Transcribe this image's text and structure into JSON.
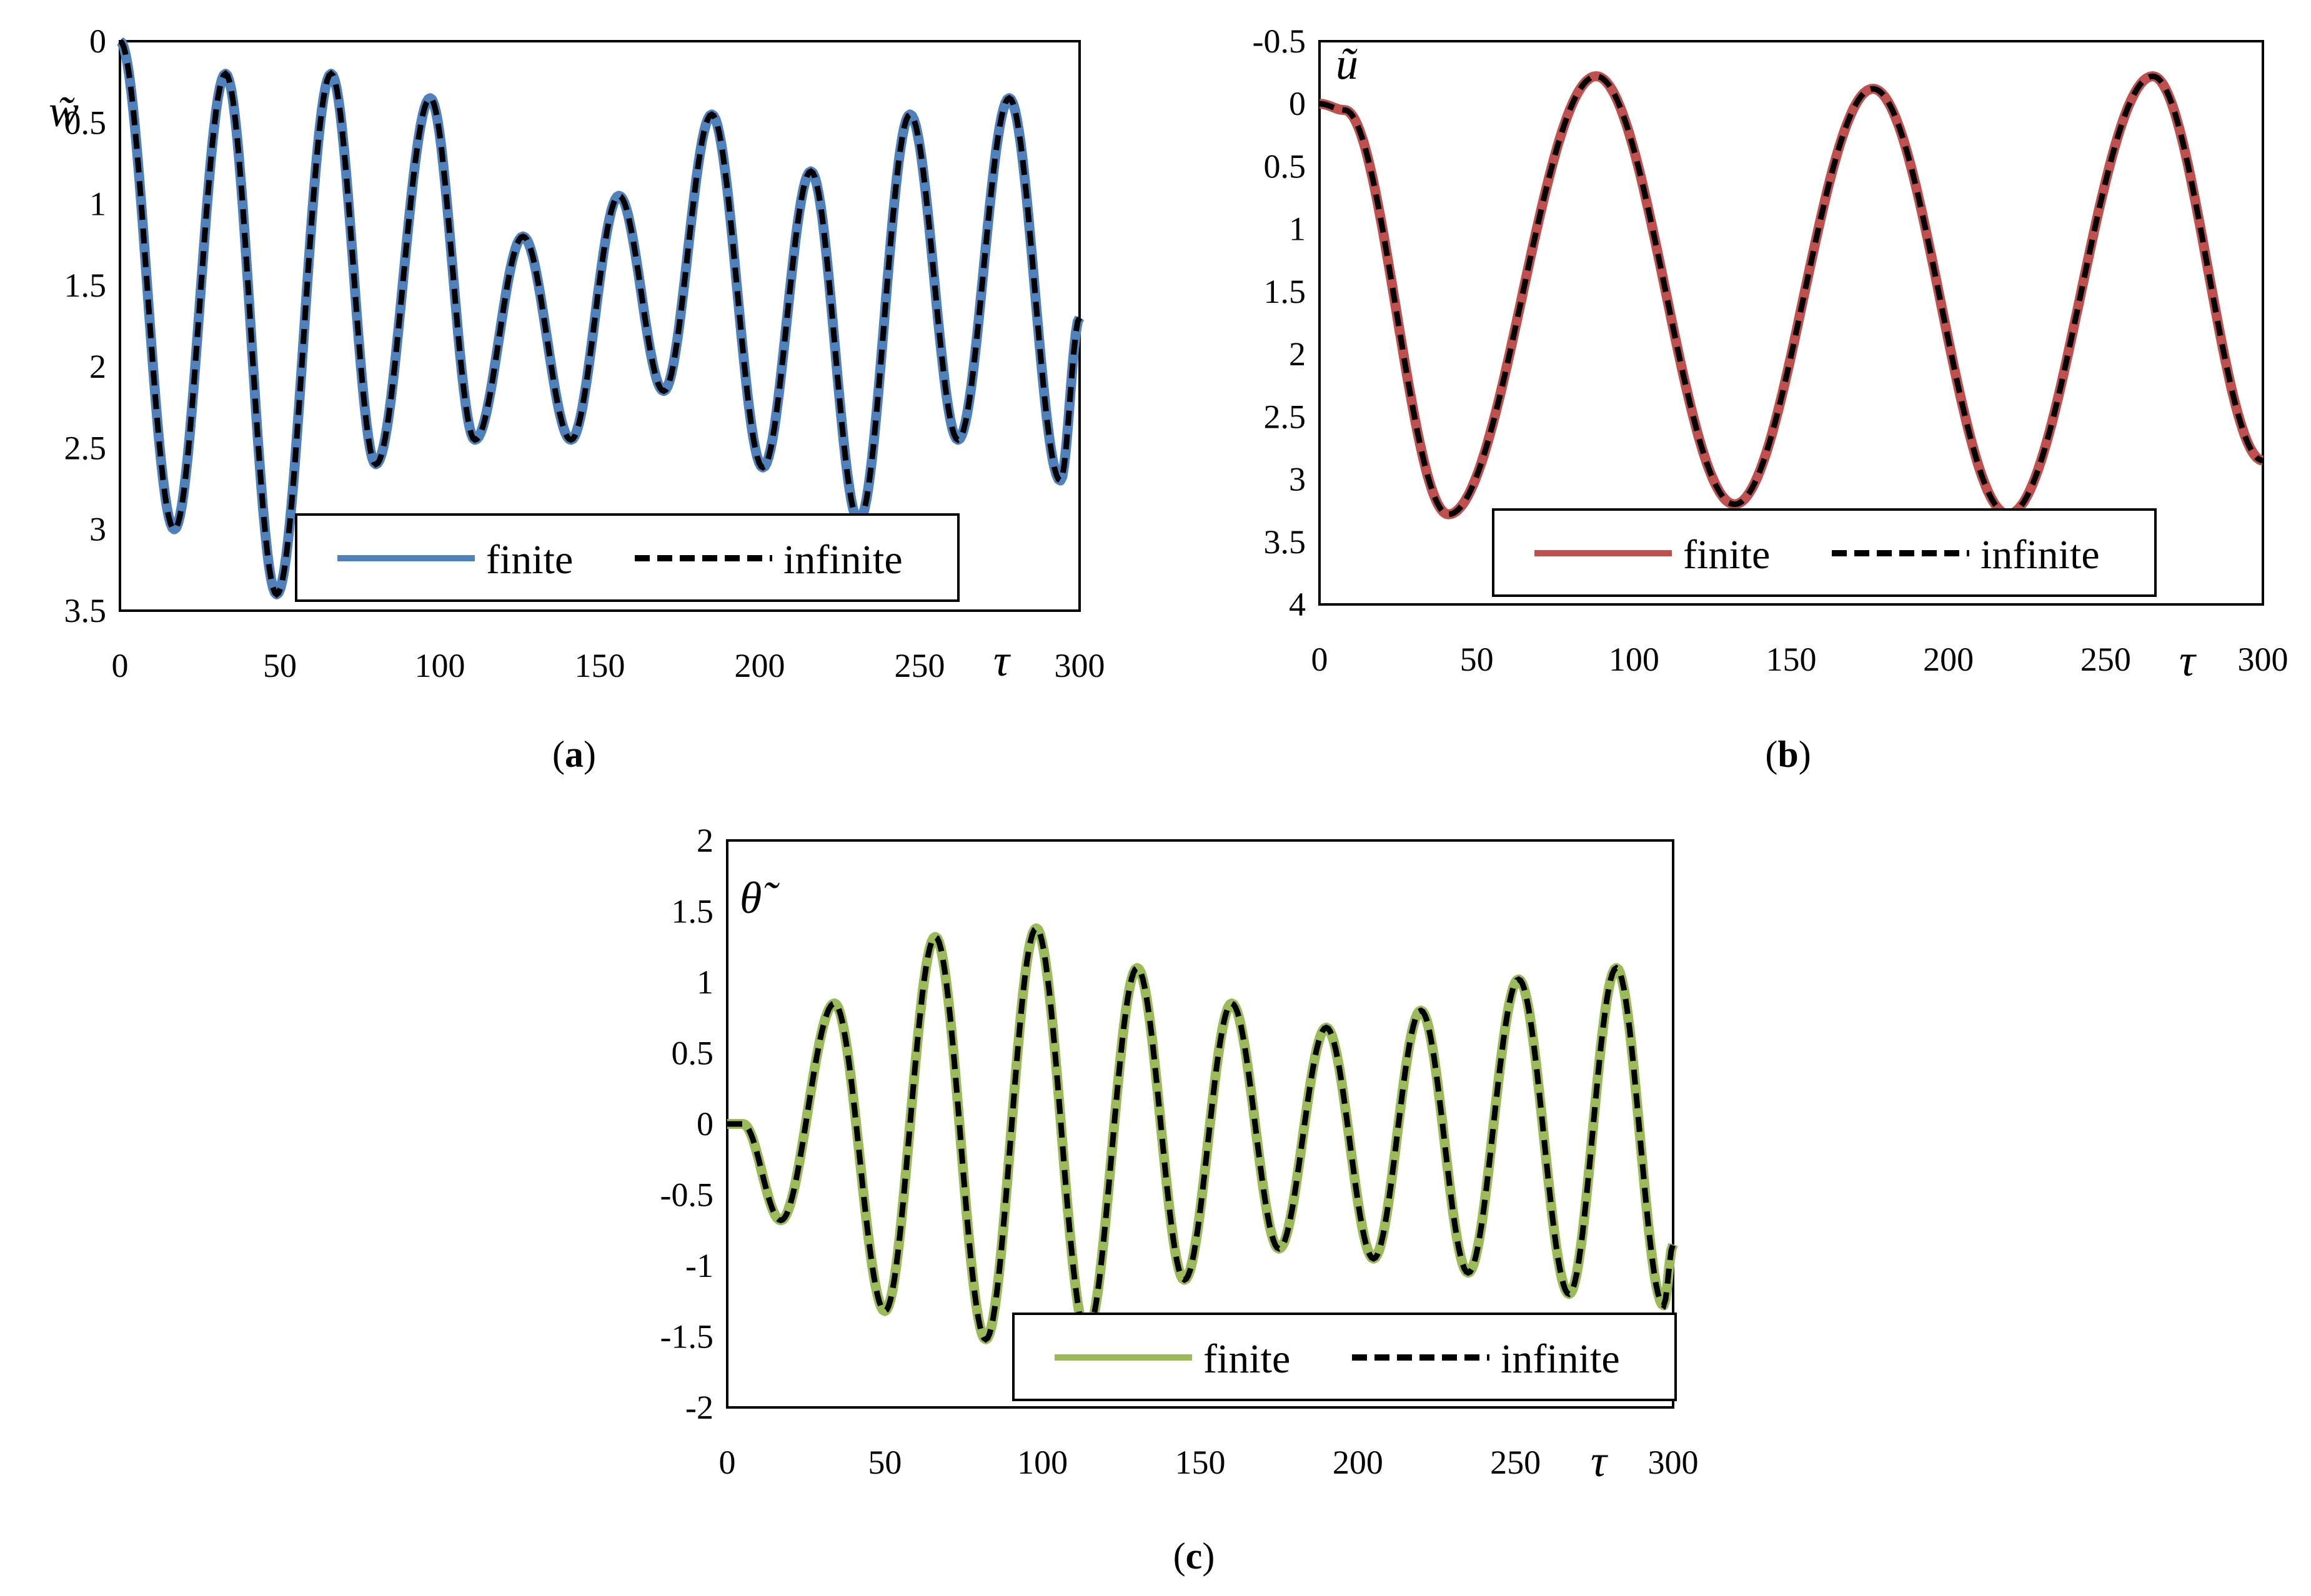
{
  "figure_captions": [
    "(a)",
    "(b)",
    "(c)"
  ],
  "chart_data": [
    {
      "id": "a",
      "type": "line",
      "caption_letter": "a",
      "y_label": "w̃",
      "x_label": "τ",
      "xlim": [
        0,
        300
      ],
      "ylim": [
        3.5,
        0
      ],
      "y_inverted": true,
      "x_ticks": [
        "0",
        "50",
        "100",
        "150",
        "200",
        "250",
        "300"
      ],
      "y_ticks": [
        "0",
        "0.5",
        "1",
        "1.5",
        "2",
        "2.5",
        "3",
        "3.5"
      ],
      "legend_position": "bottom-right",
      "series": [
        {
          "name": "finite",
          "color": "#4f81bd",
          "style": "solid"
        },
        {
          "name": "infinite",
          "color": "#000000",
          "style": "dashed"
        }
      ],
      "points": [
        [
          0,
          0
        ],
        [
          17,
          3.0
        ],
        [
          33,
          0.2
        ],
        [
          49,
          3.4
        ],
        [
          66,
          0.2
        ],
        [
          80,
          2.6
        ],
        [
          97,
          0.35
        ],
        [
          111,
          2.45
        ],
        [
          126,
          1.2
        ],
        [
          141,
          2.45
        ],
        [
          156,
          0.95
        ],
        [
          170,
          2.15
        ],
        [
          185,
          0.45
        ],
        [
          201,
          2.62
        ],
        [
          216,
          0.8
        ],
        [
          231,
          2.95
        ],
        [
          247,
          0.45
        ],
        [
          262,
          2.45
        ],
        [
          278,
          0.35
        ],
        [
          294,
          2.7
        ],
        [
          300,
          1.7
        ]
      ]
    },
    {
      "id": "b",
      "type": "line",
      "caption_letter": "b",
      "y_label": "ũ",
      "x_label": "τ",
      "xlim": [
        0,
        300
      ],
      "ylim": [
        4,
        -0.5
      ],
      "y_inverted": true,
      "x_ticks": [
        "0",
        "50",
        "100",
        "150",
        "200",
        "250",
        "300"
      ],
      "y_ticks": [
        "-0.5",
        "0",
        "0.5",
        "1",
        "1.5",
        "2",
        "2.5",
        "3",
        "3.5",
        "4"
      ],
      "legend_position": "bottom-right",
      "series": [
        {
          "name": "finite",
          "color": "#c0504d",
          "style": "solid"
        },
        {
          "name": "infinite",
          "color": "#000000",
          "style": "dashed"
        }
      ],
      "points": [
        [
          0,
          0
        ],
        [
          8,
          0.05
        ],
        [
          41,
          3.28
        ],
        [
          88,
          -0.22
        ],
        [
          132,
          3.2
        ],
        [
          176,
          -0.12
        ],
        [
          219,
          3.28
        ],
        [
          265,
          -0.22
        ],
        [
          300,
          2.85
        ]
      ]
    },
    {
      "id": "c",
      "type": "line",
      "caption_letter": "c",
      "y_label": "θ̃",
      "x_label": "τ",
      "xlim": [
        0,
        300
      ],
      "ylim": [
        -2,
        2
      ],
      "y_inverted": false,
      "x_ticks": [
        "0",
        "50",
        "100",
        "150",
        "200",
        "250",
        "300"
      ],
      "y_ticks": [
        "2",
        "1.5",
        "1",
        "0.5",
        "0",
        "-0.5",
        "-1",
        "-1.5",
        "-2"
      ],
      "legend_position": "bottom-right",
      "series": [
        {
          "name": "finite",
          "color": "#9bbb59",
          "style": "solid"
        },
        {
          "name": "infinite",
          "color": "#000000",
          "style": "dashed"
        }
      ],
      "points": [
        [
          0,
          0
        ],
        [
          5,
          0
        ],
        [
          17,
          -0.68
        ],
        [
          34,
          0.85
        ],
        [
          50,
          -1.32
        ],
        [
          66,
          1.32
        ],
        [
          82,
          -1.52
        ],
        [
          98,
          1.38
        ],
        [
          114,
          -1.48
        ],
        [
          130,
          1.1
        ],
        [
          145,
          -1.1
        ],
        [
          160,
          0.85
        ],
        [
          175,
          -0.88
        ],
        [
          190,
          0.68
        ],
        [
          205,
          -0.95
        ],
        [
          220,
          0.8
        ],
        [
          235,
          -1.05
        ],
        [
          251,
          1.02
        ],
        [
          267,
          -1.2
        ],
        [
          282,
          1.1
        ],
        [
          297,
          -1.28
        ],
        [
          300,
          -0.85
        ]
      ]
    }
  ]
}
